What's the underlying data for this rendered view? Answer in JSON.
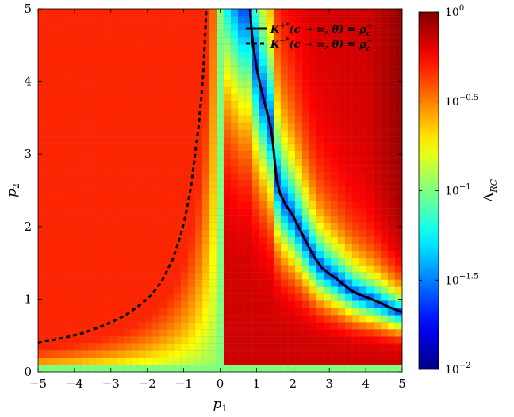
{
  "chart_data": {
    "type": "heatmap",
    "xlabel": "p",
    "xlabel_sub": "1",
    "ylabel": "p",
    "ylabel_sub": "2",
    "xlim": [
      -5,
      5
    ],
    "ylim": [
      0,
      5
    ],
    "x_ticks": [
      -5,
      -4,
      -3,
      -2,
      -1,
      0,
      1,
      2,
      3,
      4,
      5
    ],
    "x_tick_labels": [
      "−5",
      "−4",
      "−3",
      "−2",
      "−1",
      "0",
      "1",
      "2",
      "3",
      "4",
      "5"
    ],
    "y_ticks": [
      0,
      1,
      2,
      3,
      4,
      5
    ],
    "y_tick_labels": [
      "0",
      "1",
      "2",
      "3",
      "4",
      "5"
    ],
    "grid_cells": [
      51,
      51
    ],
    "colorbar": {
      "label": "Δ",
      "label_sub": "RC",
      "scale": "log",
      "range": [
        0.01,
        1
      ],
      "colormap": "jet",
      "ticks": [
        {
          "value": 1,
          "base": "10",
          "exp": "0"
        },
        {
          "value": 0.3162,
          "base": "10",
          "exp": "−0.5"
        },
        {
          "value": 0.1,
          "base": "10",
          "exp": "−1"
        },
        {
          "value": 0.03162,
          "base": "10",
          "exp": "−1.5"
        },
        {
          "value": 0.01,
          "base": "10",
          "exp": "−2"
        }
      ]
    },
    "series": [
      {
        "name": "K+*(c → ∞, θ) = ρc+",
        "legend_main": "K",
        "legend_sup": "+*",
        "legend_mid": "(c → ∞, θ) = ρ",
        "legend_sub": "c",
        "legend_sup2": "+",
        "style": "solid",
        "color": "#000000",
        "x": [
          0.82,
          0.85,
          0.9,
          1.0,
          1.1,
          1.2,
          1.3,
          1.4,
          1.45,
          1.5,
          1.55,
          1.65,
          1.8,
          2.0,
          2.2,
          2.4,
          2.6,
          2.8,
          3.0,
          3.2,
          3.4,
          3.6,
          3.8,
          4.0,
          4.2,
          4.4,
          4.6,
          4.8,
          5.0
        ],
        "y": [
          5.0,
          4.8,
          4.5,
          4.2,
          3.95,
          3.75,
          3.55,
          3.35,
          3.15,
          2.9,
          2.65,
          2.45,
          2.3,
          2.15,
          1.95,
          1.75,
          1.57,
          1.43,
          1.35,
          1.28,
          1.2,
          1.12,
          1.07,
          1.03,
          0.99,
          0.95,
          0.9,
          0.86,
          0.82
        ]
      },
      {
        "name": "K−*(c → ∞, θ) = ρc−",
        "legend_main": "K",
        "legend_sup": "−*",
        "legend_mid": "(c → ∞, θ) = ρ",
        "legend_sub": "c",
        "legend_sup2": "−",
        "style": "dashed",
        "color": "#000000",
        "x": [
          -5.0,
          -4.6,
          -4.2,
          -3.8,
          -3.4,
          -3.0,
          -2.6,
          -2.2,
          -1.9,
          -1.6,
          -1.3,
          -1.1,
          -0.95,
          -0.8,
          -0.7,
          -0.6,
          -0.52,
          -0.46,
          -0.42,
          -0.38
        ],
        "y": [
          0.4,
          0.44,
          0.48,
          0.53,
          0.6,
          0.68,
          0.78,
          0.92,
          1.05,
          1.25,
          1.55,
          1.85,
          2.15,
          2.55,
          2.95,
          3.35,
          3.75,
          4.15,
          4.55,
          5.0
        ]
      }
    ]
  }
}
